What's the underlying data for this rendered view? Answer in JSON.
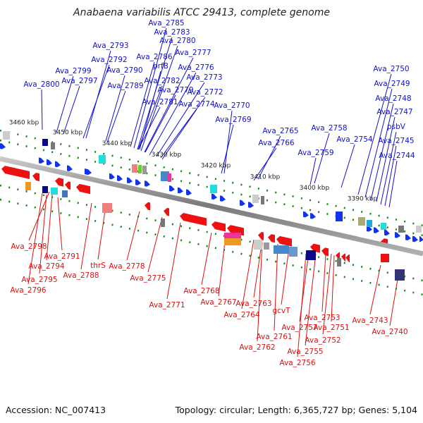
{
  "title": "Anabaena variabilis ATCC 29413, complete genome",
  "footer": {
    "accession": "Accession: NC_007413",
    "summary": "Topology: circular; Length: 6,365,727 bp; Genes: 5,104"
  },
  "colors": {
    "forward_label": "#1111cc",
    "reverse_label": "#dd1111",
    "backbone": "#888888",
    "tick": "#118811"
  },
  "scale_labels": [
    "3460 kbp",
    "3450 kbp",
    "3440 kbp",
    "3430 kbp",
    "3420 kbp",
    "3410 kbp",
    "3400 kbp",
    "3390 kbp"
  ],
  "forward_genes": [
    "Ava_2785",
    "Ava_2783",
    "Ava_2780",
    "Ava_2793",
    "Ava_2777",
    "Ava_2786",
    "Ava_2792",
    "prfB",
    "Ava_2776",
    "Ava_2799",
    "Ava_2790",
    "Ava_2797",
    "Ava_2773",
    "Ava_2782",
    "Ava_2800",
    "Ava_2789",
    "Ava_2779",
    "Ava_2772",
    "Ava_2781",
    "Ava_2774",
    "Ava_2770",
    "Ava_2769",
    "Ava_2765",
    "Ava_2758",
    "Ava_2766",
    "Ava_2754",
    "Ava_2759",
    "Ava_2750",
    "Ava_2749",
    "Ava_2748",
    "Ava_2747",
    "psbV",
    "Ava_2745",
    "Ava_2744"
  ],
  "reverse_genes": [
    "Ava_2798",
    "Ava_2791",
    "Ava_2794",
    "thrS",
    "Ava_2778",
    "Ava_2788",
    "Ava_2795",
    "Ava_2775",
    "Ava_2796",
    "Ava_2768",
    "Ava_2767",
    "Ava_2771",
    "Ava_2763",
    "Ava_2764",
    "gcvT",
    "Ava_2753",
    "Ava_2757",
    "Ava_2751",
    "Ava_2743",
    "Ava_2761",
    "Ava_2752",
    "Ava_2740",
    "Ava_2762",
    "Ava_2755",
    "Ava_2756"
  ]
}
